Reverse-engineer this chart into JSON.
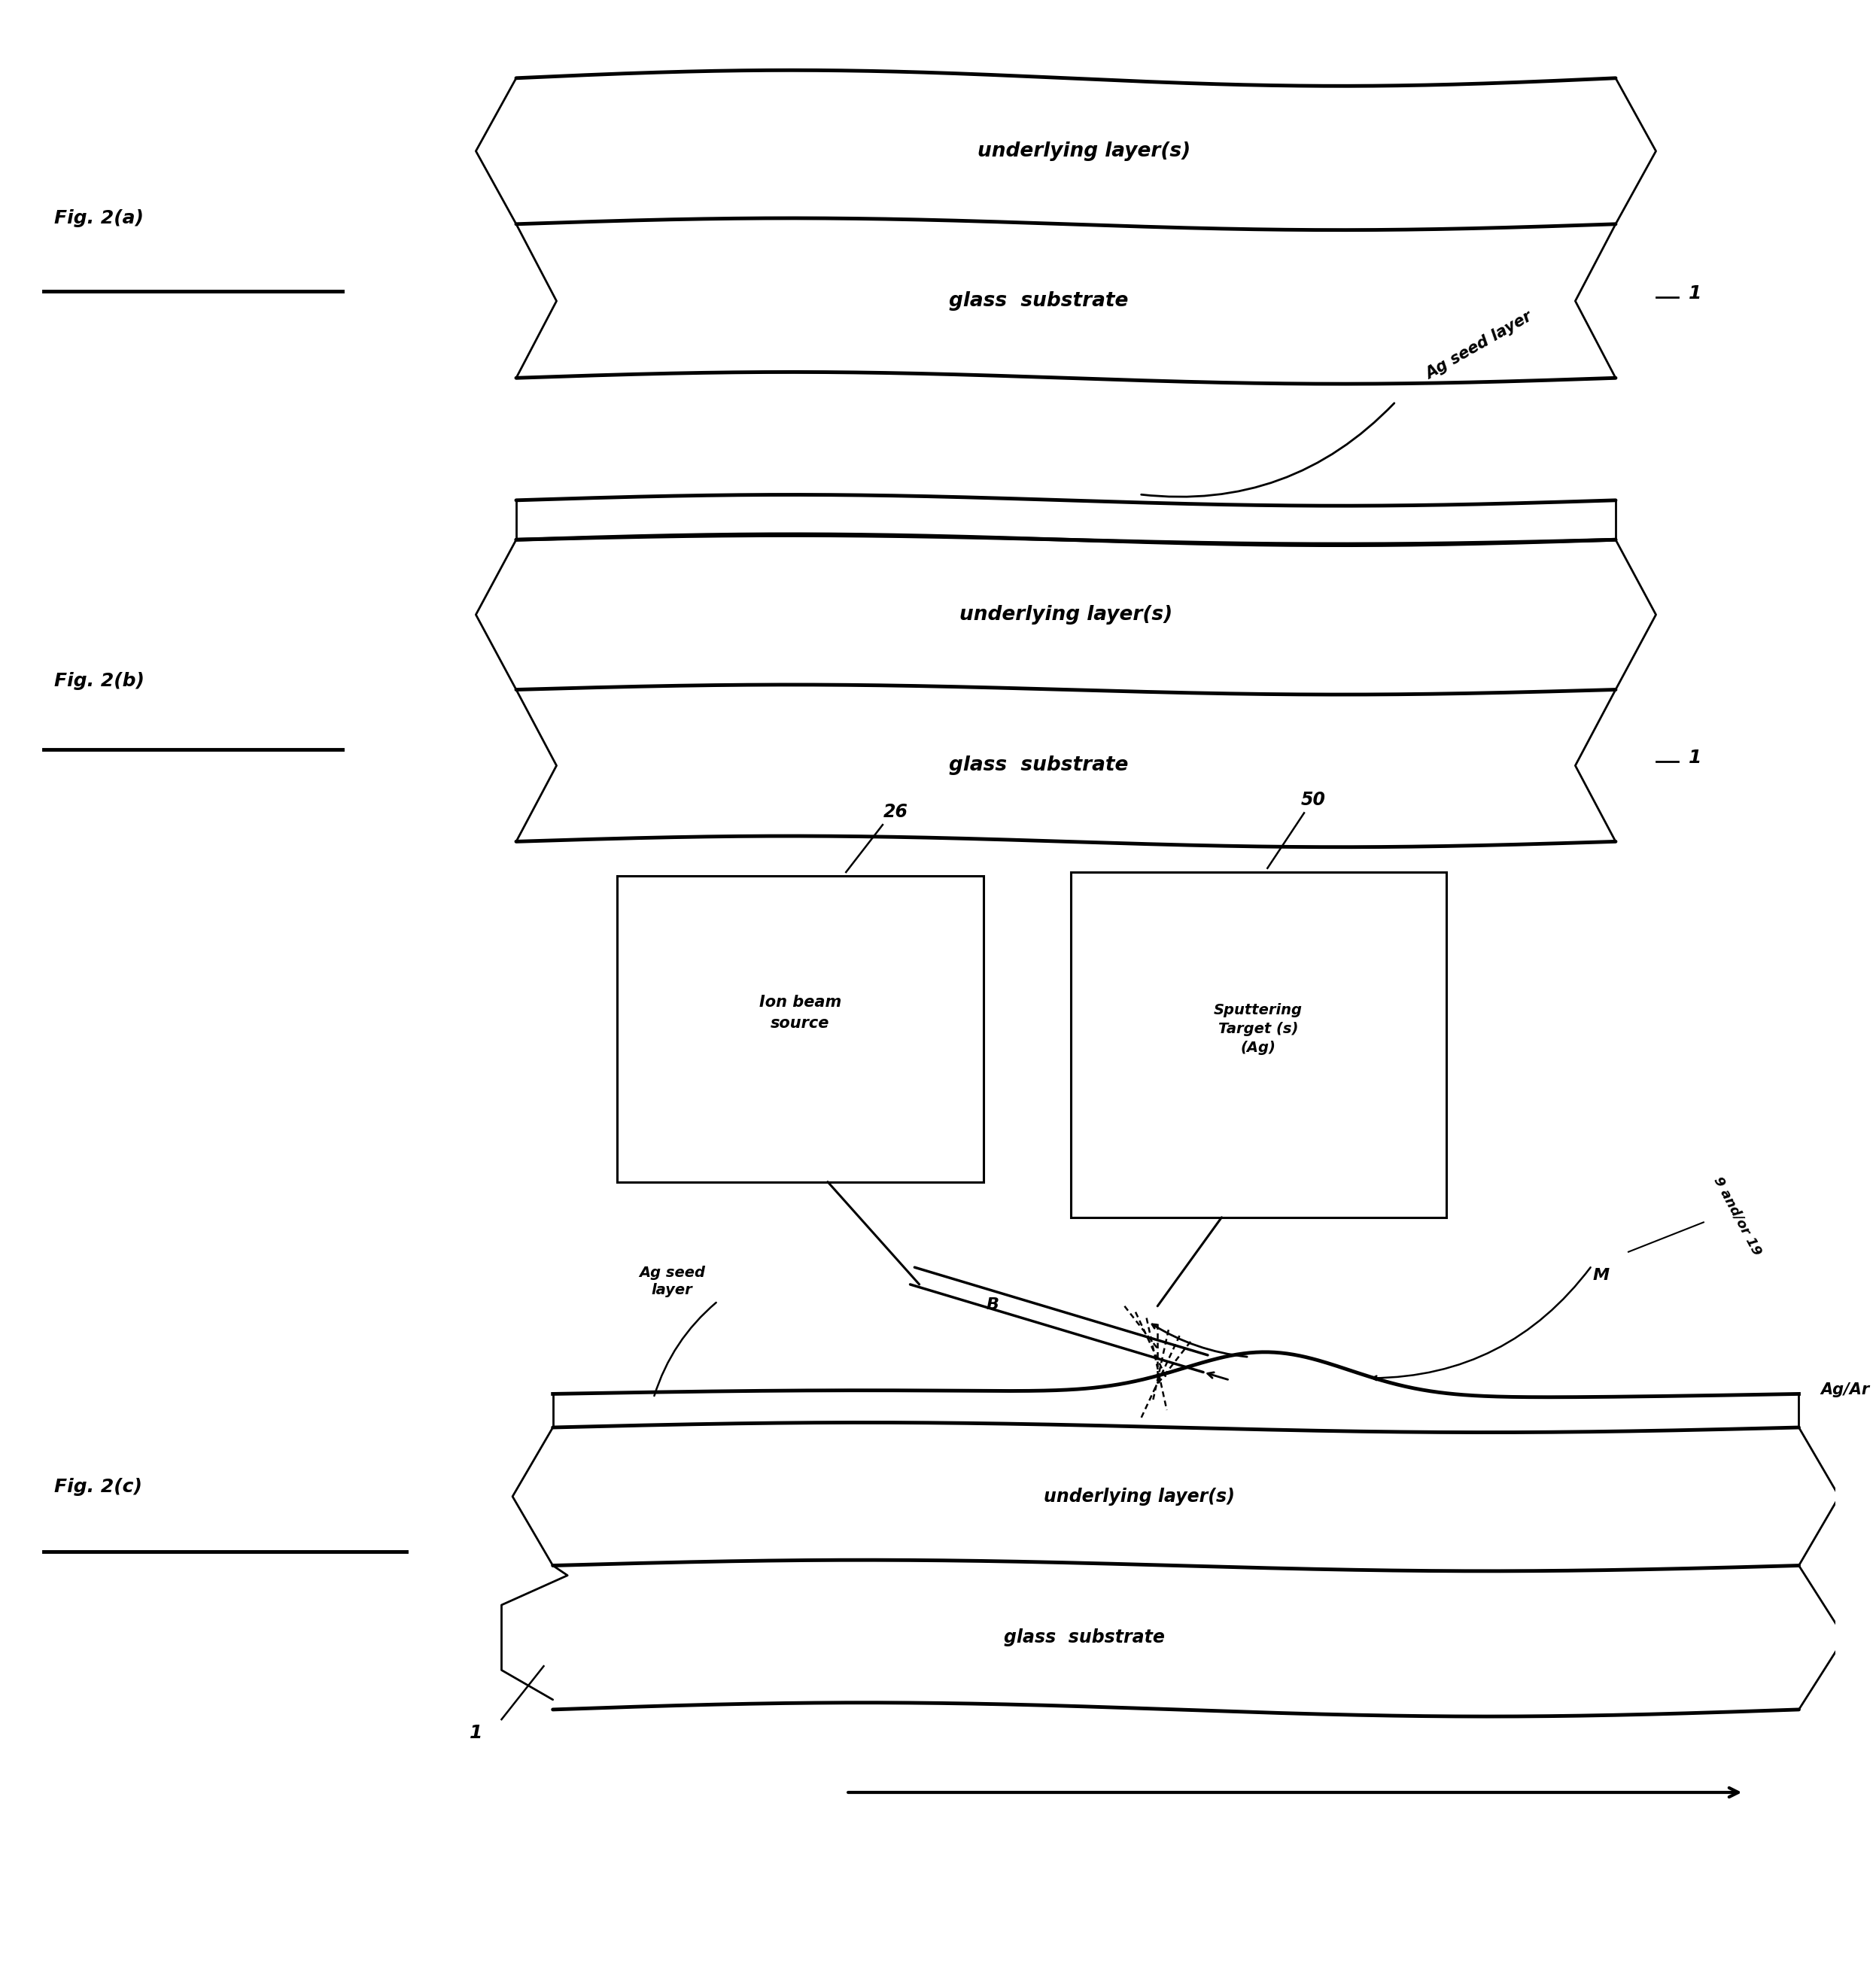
{
  "bg_color": "#ffffff",
  "fig_width": 24.93,
  "fig_height": 26.3,
  "fig2a_label": "Fig. 2(a)",
  "fig2b_label": "Fig. 2(b)",
  "fig2c_label": "Fig. 2(c)",
  "underlying_layer_text": "underlying layer(s)",
  "glass_substrate_text": "glass  substrate",
  "ag_seed_layer_text": "Ag seed layer",
  "ion_beam_source_text": "Ion beam\nsource",
  "sputtering_target_text": "Sputtering\nTarget (s)\n(Ag)",
  "ag_ar_text": "Ag/Ar",
  "label_1": "1",
  "label_26": "26",
  "label_50": "50",
  "label_B": "B",
  "label_M": "M",
  "label_9_19": "9 and/or 19"
}
